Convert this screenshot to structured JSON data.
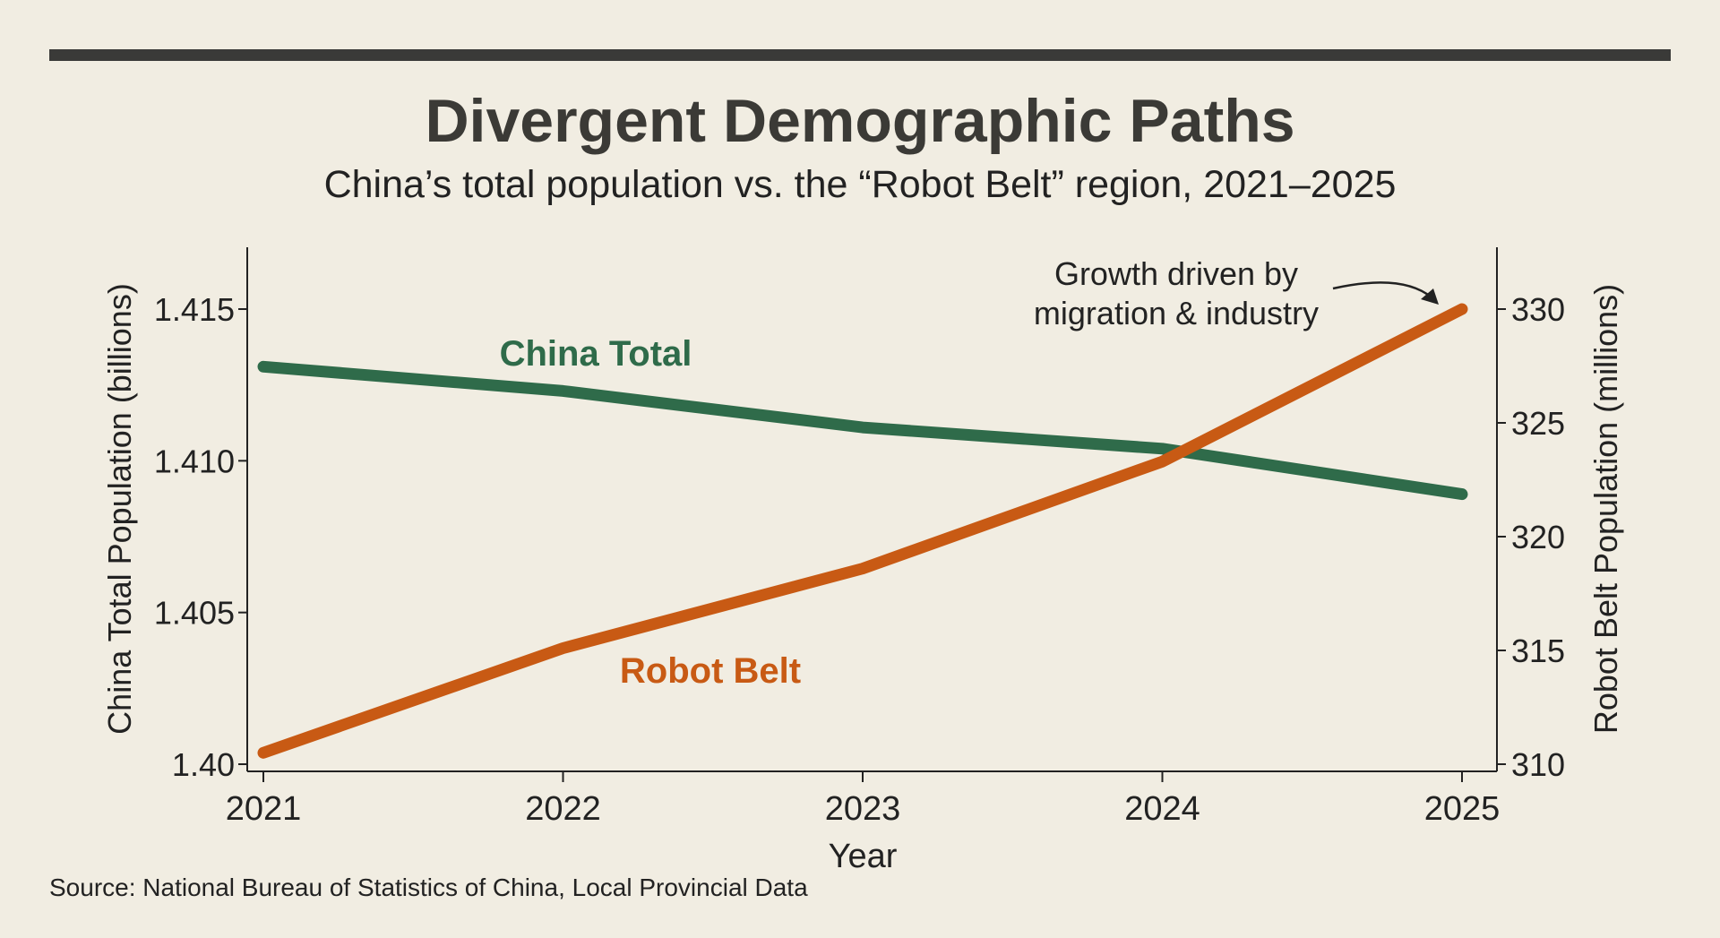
{
  "chart_data": {
    "type": "line",
    "title": "Divergent Demographic Paths",
    "subtitle": "China’s total population vs. the “Robot Belt” region, 2021–2025",
    "xlabel": "Year",
    "ylabel_left": "China Total Population (billions)",
    "ylabel_right": "Robot Belt Population (millions)",
    "categories": [
      "2021",
      "2022",
      "2023",
      "2024",
      "2025"
    ],
    "ylim_left": [
      1.4,
      1.417
    ],
    "ylim_right": [
      310,
      331
    ],
    "yticks_left": [
      "1.40",
      "1.405",
      "1.410",
      "1.415"
    ],
    "yticks_right": [
      "310",
      "315",
      "320",
      "325",
      "330"
    ],
    "grid": false,
    "series": [
      {
        "name": "China Total",
        "axis": "left",
        "color": "#2f6b4a",
        "values": [
          1.4131,
          1.4123,
          1.4111,
          1.4104,
          1.4089
        ]
      },
      {
        "name": "Robot Belt",
        "axis": "right",
        "color": "#c85a14",
        "values": [
          310.5,
          315.1,
          318.6,
          323.3,
          330.0
        ]
      }
    ],
    "annotation": [
      "Growth driven by",
      "migration & industry"
    ],
    "source": "Source: National Bureau of Statistics of China, Local Provincial Data"
  }
}
